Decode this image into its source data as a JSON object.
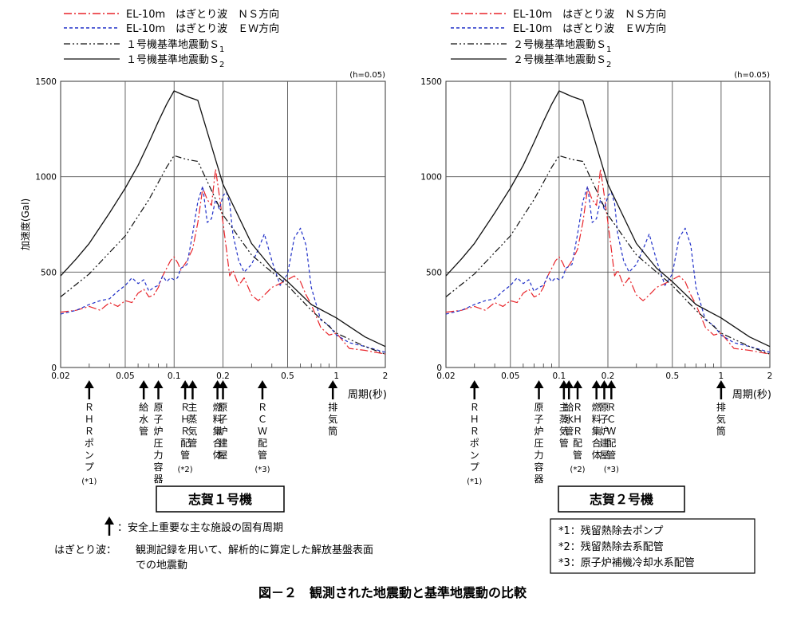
{
  "legend": {
    "left": [
      "EL-10m　はぎとり波　ＮＳ方向",
      "EL-10m　はぎとり波　ＥＷ方向",
      "１号機基準地震動Ｓ",
      "１号機基準地震動Ｓ"
    ],
    "right": [
      "EL-10m　はぎとり波　ＮＳ方向",
      "EL-10m　はぎとり波　ＥＷ方向",
      "２号機基準地震動Ｓ",
      "２号機基準地震動Ｓ"
    ],
    "subscripts": [
      "1",
      "2"
    ]
  },
  "colors": {
    "ns": "#e8242a",
    "ew": "#2030c8",
    "s1": "#111111",
    "s2": "#111111",
    "grid": "#555555"
  },
  "charts": [
    {
      "id": "unit1",
      "plant_label": "志賀１号機",
      "damping_note": "(h=0.05)",
      "ylabel": "加速度(Gal)",
      "xlabel": "周期(秒)",
      "facilities": [
        {
          "label": "ＲＨＲポンプ",
          "period": 0.03,
          "note": "(*1)"
        },
        {
          "label": "給水管",
          "period": 0.065,
          "note": ""
        },
        {
          "label": "原子炉圧力容器",
          "period": 0.08,
          "note": ""
        },
        {
          "label": "ＲＨＲ配管",
          "period": 0.117,
          "note": "(*2)"
        },
        {
          "label": "主蒸気管",
          "period": 0.13,
          "note": ""
        },
        {
          "label": "燃料集合体",
          "period": 0.185,
          "note": ""
        },
        {
          "label": "原子炉建屋",
          "period": 0.2,
          "note": ""
        },
        {
          "label": "ＲＣＷ配管",
          "period": 0.35,
          "note": "(*3)"
        },
        {
          "label": "排気筒",
          "period": 0.95,
          "note": ""
        }
      ]
    },
    {
      "id": "unit2",
      "plant_label": "志賀２号機",
      "damping_note": "(h=0.05)",
      "ylabel": "",
      "xlabel": "周期(秒)",
      "facilities": [
        {
          "label": "ＲＨＲポンプ",
          "period": 0.03,
          "note": "(*1)"
        },
        {
          "label": "原子炉圧力容器",
          "period": 0.075,
          "note": ""
        },
        {
          "label": "主蒸気管",
          "period": 0.107,
          "note": ""
        },
        {
          "label": "給水管",
          "period": 0.115,
          "note": ""
        },
        {
          "label": "ＲＨＲ配管",
          "period": 0.13,
          "note": "(*2)"
        },
        {
          "label": "燃料集合体",
          "period": 0.17,
          "note": ""
        },
        {
          "label": "原子炉建屋",
          "period": 0.19,
          "note": ""
        },
        {
          "label": "ＲＣＷ配管",
          "period": 0.21,
          "note": "(*3)"
        },
        {
          "label": "排気筒",
          "period": 1.0,
          "note": ""
        }
      ]
    }
  ],
  "chart_data": [
    {
      "type": "line",
      "title": "志賀１号機",
      "xlabel": "周期(秒)",
      "ylabel": "加速度(Gal)",
      "xscale": "log",
      "xlim": [
        0.02,
        2
      ],
      "ylim": [
        0,
        1500
      ],
      "xticks": [
        0.02,
        0.05,
        0.1,
        0.2,
        0.5,
        1,
        2
      ],
      "xtick_labels": [
        "0.02",
        "0.05",
        "0.1",
        "0.2",
        "0.5",
        "1",
        "2"
      ],
      "yticks": [
        0,
        500,
        1000,
        1500
      ],
      "ytick_labels": [
        "0",
        "500",
        "1000",
        "1500"
      ],
      "grid": true,
      "annotation": "(h=0.05)",
      "series": [
        {
          "name": "EL-10m　はぎとり波　ＮＳ方向",
          "style": "dashdot",
          "color": "#e8242a",
          "x": [
            0.02,
            0.025,
            0.03,
            0.035,
            0.04,
            0.045,
            0.05,
            0.055,
            0.06,
            0.065,
            0.07,
            0.075,
            0.08,
            0.085,
            0.09,
            0.095,
            0.1,
            0.105,
            0.11,
            0.12,
            0.13,
            0.14,
            0.15,
            0.16,
            0.17,
            0.18,
            0.19,
            0.2,
            0.21,
            0.22,
            0.23,
            0.25,
            0.27,
            0.3,
            0.33,
            0.36,
            0.4,
            0.45,
            0.5,
            0.55,
            0.6,
            0.65,
            0.7,
            0.8,
            0.9,
            1.0,
            1.2,
            1.5,
            2.0
          ],
          "y": [
            290,
            300,
            320,
            300,
            340,
            320,
            350,
            340,
            390,
            410,
            370,
            380,
            420,
            480,
            520,
            560,
            580,
            550,
            510,
            560,
            620,
            760,
            940,
            880,
            850,
            1040,
            900,
            760,
            620,
            480,
            510,
            430,
            470,
            380,
            350,
            380,
            420,
            440,
            460,
            480,
            450,
            380,
            330,
            210,
            170,
            180,
            100,
            90,
            70
          ]
        },
        {
          "name": "EL-10m　はぎとり波　ＥＷ方向",
          "style": "dashed",
          "color": "#2030c8",
          "x": [
            0.02,
            0.025,
            0.03,
            0.035,
            0.04,
            0.045,
            0.05,
            0.055,
            0.06,
            0.065,
            0.07,
            0.075,
            0.08,
            0.085,
            0.09,
            0.095,
            0.1,
            0.105,
            0.11,
            0.12,
            0.13,
            0.14,
            0.15,
            0.16,
            0.17,
            0.18,
            0.19,
            0.2,
            0.21,
            0.22,
            0.23,
            0.25,
            0.27,
            0.3,
            0.33,
            0.36,
            0.4,
            0.45,
            0.5,
            0.55,
            0.6,
            0.65,
            0.7,
            0.8,
            0.9,
            1.0,
            1.2,
            1.5,
            2.0
          ],
          "y": [
            280,
            300,
            330,
            350,
            360,
            400,
            430,
            470,
            440,
            460,
            400,
            420,
            430,
            480,
            450,
            470,
            460,
            470,
            520,
            540,
            700,
            870,
            950,
            760,
            780,
            880,
            830,
            900,
            920,
            860,
            700,
            560,
            500,
            540,
            620,
            700,
            560,
            430,
            490,
            680,
            730,
            640,
            420,
            250,
            220,
            170,
            130,
            110,
            80
          ]
        },
        {
          "name": "１号機基準地震動Ｓ1",
          "style": "dashdotdot",
          "color": "#111111",
          "x": [
            0.02,
            0.03,
            0.05,
            0.07,
            0.09,
            0.1,
            0.12,
            0.14,
            0.2,
            0.3,
            0.5,
            0.7,
            1.0,
            1.5,
            2.0
          ],
          "y": [
            370,
            490,
            690,
            880,
            1050,
            1110,
            1090,
            1080,
            800,
            590,
            430,
            300,
            180,
            110,
            70
          ]
        },
        {
          "name": "１号機基準地震動Ｓ2",
          "style": "solid",
          "color": "#111111",
          "x": [
            0.02,
            0.025,
            0.03,
            0.04,
            0.05,
            0.06,
            0.07,
            0.08,
            0.09,
            0.1,
            0.12,
            0.14,
            0.2,
            0.3,
            0.4,
            0.5,
            0.7,
            1.0,
            1.5,
            2.0
          ],
          "y": [
            480,
            570,
            650,
            810,
            940,
            1060,
            1180,
            1290,
            1380,
            1450,
            1420,
            1400,
            960,
            650,
            520,
            450,
            330,
            260,
            160,
            110
          ]
        }
      ]
    },
    {
      "type": "line",
      "title": "志賀２号機",
      "xlabel": "周期(秒)",
      "ylabel": "",
      "xscale": "log",
      "xlim": [
        0.02,
        2
      ],
      "ylim": [
        0,
        1500
      ],
      "xticks": [
        0.02,
        0.05,
        0.1,
        0.2,
        0.5,
        1,
        2
      ],
      "xtick_labels": [
        "0.02",
        "0.05",
        "0.1",
        "0.2",
        "0.5",
        "1",
        "2"
      ],
      "yticks": [
        0,
        500,
        1000,
        1500
      ],
      "ytick_labels": [
        "0",
        "500",
        "1000",
        "1500"
      ],
      "grid": true,
      "annotation": "(h=0.05)",
      "series": [
        {
          "name": "EL-10m　はぎとり波　ＮＳ方向",
          "style": "dashdot",
          "color": "#e8242a",
          "x": [
            0.02,
            0.025,
            0.03,
            0.035,
            0.04,
            0.045,
            0.05,
            0.055,
            0.06,
            0.065,
            0.07,
            0.075,
            0.08,
            0.085,
            0.09,
            0.095,
            0.1,
            0.105,
            0.11,
            0.12,
            0.13,
            0.14,
            0.15,
            0.16,
            0.17,
            0.18,
            0.19,
            0.2,
            0.21,
            0.22,
            0.23,
            0.25,
            0.27,
            0.3,
            0.33,
            0.36,
            0.4,
            0.45,
            0.5,
            0.55,
            0.6,
            0.65,
            0.7,
            0.8,
            0.9,
            1.0,
            1.2,
            1.5,
            2.0
          ],
          "y": [
            290,
            300,
            320,
            300,
            340,
            320,
            350,
            340,
            390,
            410,
            370,
            380,
            420,
            480,
            520,
            560,
            580,
            550,
            510,
            560,
            620,
            760,
            940,
            880,
            850,
            1040,
            900,
            760,
            620,
            480,
            510,
            430,
            470,
            380,
            350,
            380,
            420,
            440,
            460,
            480,
            450,
            380,
            330,
            210,
            170,
            180,
            100,
            90,
            70
          ]
        },
        {
          "name": "EL-10m　はぎとり波　ＥＷ方向",
          "style": "dashed",
          "color": "#2030c8",
          "x": [
            0.02,
            0.025,
            0.03,
            0.035,
            0.04,
            0.045,
            0.05,
            0.055,
            0.06,
            0.065,
            0.07,
            0.075,
            0.08,
            0.085,
            0.09,
            0.095,
            0.1,
            0.105,
            0.11,
            0.12,
            0.13,
            0.14,
            0.15,
            0.16,
            0.17,
            0.18,
            0.19,
            0.2,
            0.21,
            0.22,
            0.23,
            0.25,
            0.27,
            0.3,
            0.33,
            0.36,
            0.4,
            0.45,
            0.5,
            0.55,
            0.6,
            0.65,
            0.7,
            0.8,
            0.9,
            1.0,
            1.2,
            1.5,
            2.0
          ],
          "y": [
            280,
            300,
            330,
            350,
            360,
            400,
            430,
            470,
            440,
            460,
            400,
            420,
            430,
            480,
            450,
            470,
            460,
            470,
            520,
            540,
            700,
            870,
            950,
            760,
            780,
            880,
            830,
            900,
            920,
            860,
            700,
            560,
            500,
            540,
            620,
            700,
            560,
            430,
            490,
            680,
            730,
            640,
            420,
            250,
            220,
            170,
            130,
            110,
            80
          ]
        },
        {
          "name": "２号機基準地震動Ｓ1",
          "style": "dashdotdot",
          "color": "#111111",
          "x": [
            0.02,
            0.03,
            0.05,
            0.07,
            0.09,
            0.1,
            0.12,
            0.14,
            0.2,
            0.3,
            0.5,
            0.7,
            1.0,
            1.5,
            2.0
          ],
          "y": [
            370,
            490,
            690,
            880,
            1050,
            1110,
            1090,
            1080,
            800,
            590,
            430,
            300,
            180,
            110,
            70
          ]
        },
        {
          "name": "２号機基準地震動Ｓ2",
          "style": "solid",
          "color": "#111111",
          "x": [
            0.02,
            0.025,
            0.03,
            0.04,
            0.05,
            0.06,
            0.07,
            0.08,
            0.09,
            0.1,
            0.12,
            0.14,
            0.2,
            0.3,
            0.4,
            0.5,
            0.7,
            1.0,
            1.5,
            2.0
          ],
          "y": [
            480,
            570,
            650,
            810,
            940,
            1060,
            1180,
            1290,
            1380,
            1450,
            1420,
            1400,
            960,
            650,
            520,
            450,
            330,
            260,
            160,
            110
          ]
        }
      ]
    }
  ],
  "notes": {
    "arrow_legend": "：安全上重要な主な施設の固有周期",
    "hagitori_label": "はぎとり波：",
    "hagitori_line1": "観測記録を用いて、解析的に算定した解放基盤表面",
    "hagitori_line2": "での地震動",
    "footnotes": [
      "*1：残留熱除去ポンプ",
      "*2：残留熱除去系配管",
      "*3：原子炉補機冷却水系配管"
    ]
  },
  "figure_title": "図－２　観測された地震動と基準地震動の比較"
}
